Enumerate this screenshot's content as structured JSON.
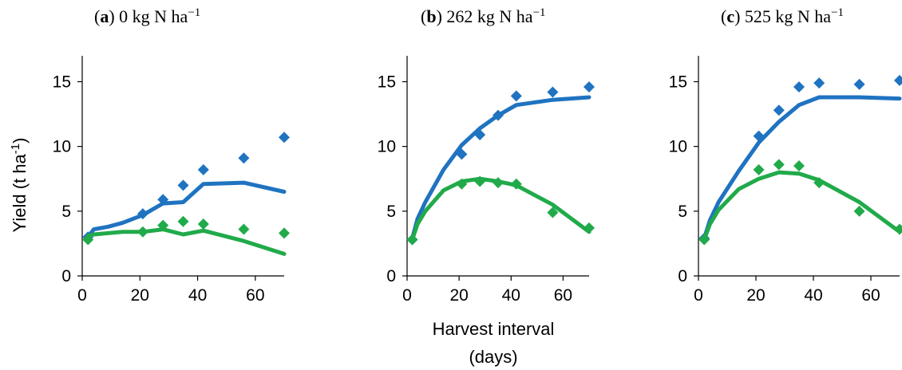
{
  "chart_data": [
    {
      "type": "line",
      "title_letter": "a",
      "title_text": " 0 kg N ha",
      "title_sup": "−1",
      "ylabel": "Yield (t ha",
      "ylabel_sup": "-1",
      "ylabel_end": ")",
      "xlabel": "",
      "xlim": [
        0,
        70
      ],
      "ylim": [
        0,
        17
      ],
      "xticks": [
        0,
        20,
        40,
        60
      ],
      "yticks": [
        0,
        5,
        10,
        15
      ],
      "series": [
        {
          "color": "#1f73c1",
          "line": [
            [
              2,
              3.0
            ],
            [
              4,
              3.6
            ],
            [
              9,
              3.8
            ],
            [
              14,
              4.1
            ],
            [
              21,
              4.7
            ],
            [
              28,
              5.6
            ],
            [
              35,
              5.7
            ],
            [
              42,
              7.1
            ],
            [
              56,
              7.2
            ],
            [
              70,
              6.5
            ]
          ],
          "points": [
            [
              2,
              3.0
            ],
            [
              21,
              4.8
            ],
            [
              28,
              5.9
            ],
            [
              35,
              7.0
            ],
            [
              42,
              8.2
            ],
            [
              56,
              9.1
            ],
            [
              70,
              10.7
            ]
          ]
        },
        {
          "color": "#21aa4a",
          "line": [
            [
              2,
              3.1
            ],
            [
              4,
              3.2
            ],
            [
              14,
              3.4
            ],
            [
              21,
              3.4
            ],
            [
              28,
              3.6
            ],
            [
              35,
              3.2
            ],
            [
              42,
              3.5
            ],
            [
              56,
              2.7
            ],
            [
              70,
              1.7
            ]
          ],
          "points": [
            [
              2,
              2.8
            ],
            [
              21,
              3.4
            ],
            [
              28,
              3.9
            ],
            [
              35,
              4.2
            ],
            [
              42,
              4.0
            ],
            [
              56,
              3.6
            ],
            [
              70,
              3.3
            ]
          ]
        }
      ]
    },
    {
      "type": "line",
      "title_letter": "b",
      "title_text": " 262 kg N ha",
      "title_sup": "−1",
      "ylabel": "",
      "xlabel_line1": "Harvest interval",
      "xlabel_line2": "(days)",
      "xlim": [
        0,
        70
      ],
      "ylim": [
        0,
        17
      ],
      "xticks": [
        0,
        20,
        40,
        60
      ],
      "yticks": [
        0,
        5,
        10,
        15
      ],
      "series": [
        {
          "color": "#1f73c1",
          "line": [
            [
              2,
              2.9
            ],
            [
              4,
              4.4
            ],
            [
              7,
              5.7
            ],
            [
              14,
              8.2
            ],
            [
              21,
              10.1
            ],
            [
              28,
              11.4
            ],
            [
              35,
              12.4
            ],
            [
              42,
              13.2
            ],
            [
              56,
              13.6
            ],
            [
              70,
              13.8
            ]
          ],
          "points": [
            [
              2,
              2.8
            ],
            [
              21,
              9.4
            ],
            [
              28,
              10.9
            ],
            [
              35,
              12.4
            ],
            [
              42,
              13.9
            ],
            [
              56,
              14.2
            ],
            [
              70,
              14.6
            ]
          ]
        },
        {
          "color": "#21aa4a",
          "line": [
            [
              2,
              2.8
            ],
            [
              4,
              4.0
            ],
            [
              7,
              5.0
            ],
            [
              14,
              6.6
            ],
            [
              21,
              7.3
            ],
            [
              28,
              7.5
            ],
            [
              35,
              7.3
            ],
            [
              42,
              7.0
            ],
            [
              56,
              5.5
            ],
            [
              70,
              3.4
            ]
          ],
          "points": [
            [
              2,
              2.8
            ],
            [
              21,
              7.1
            ],
            [
              28,
              7.3
            ],
            [
              35,
              7.2
            ],
            [
              42,
              7.1
            ],
            [
              56,
              4.9
            ],
            [
              70,
              3.7
            ]
          ]
        }
      ]
    },
    {
      "type": "line",
      "title_letter": "c",
      "title_text": " 525 kg N ha",
      "title_sup": "−1",
      "ylabel": "",
      "xlabel": "",
      "xlim": [
        0,
        70
      ],
      "ylim": [
        0,
        17
      ],
      "xticks": [
        0,
        20,
        40,
        60
      ],
      "yticks": [
        0,
        5,
        10,
        15
      ],
      "series": [
        {
          "color": "#1f73c1",
          "line": [
            [
              2,
              2.9
            ],
            [
              4,
              4.3
            ],
            [
              7,
              5.7
            ],
            [
              14,
              8.1
            ],
            [
              21,
              10.3
            ],
            [
              28,
              11.9
            ],
            [
              35,
              13.2
            ],
            [
              42,
              13.8
            ],
            [
              56,
              13.8
            ],
            [
              70,
              13.7
            ]
          ],
          "points": [
            [
              2,
              2.9
            ],
            [
              21,
              10.8
            ],
            [
              28,
              12.8
            ],
            [
              35,
              14.6
            ],
            [
              42,
              14.9
            ],
            [
              56,
              14.8
            ],
            [
              70,
              15.1
            ]
          ]
        },
        {
          "color": "#21aa4a",
          "line": [
            [
              2,
              2.8
            ],
            [
              4,
              4.0
            ],
            [
              7,
              5.1
            ],
            [
              14,
              6.7
            ],
            [
              21,
              7.5
            ],
            [
              28,
              8.0
            ],
            [
              35,
              7.9
            ],
            [
              42,
              7.4
            ],
            [
              56,
              5.7
            ],
            [
              70,
              3.4
            ]
          ],
          "points": [
            [
              2,
              2.8
            ],
            [
              21,
              8.2
            ],
            [
              28,
              8.6
            ],
            [
              35,
              8.5
            ],
            [
              42,
              7.2
            ],
            [
              56,
              5.0
            ],
            [
              70,
              3.6
            ]
          ]
        }
      ]
    }
  ]
}
